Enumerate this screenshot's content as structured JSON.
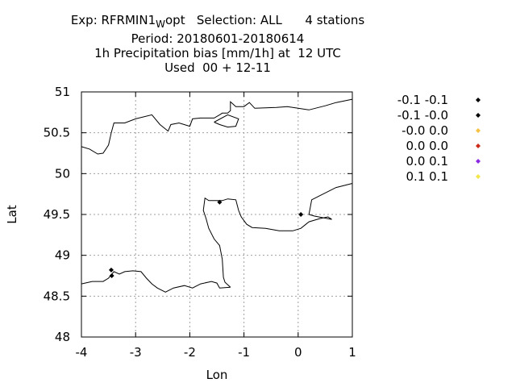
{
  "title": {
    "line1_prefix": "Exp: RFRMIN1",
    "line1_subscript": "W",
    "line1_suffix": "opt   Selection: ALL      4 stations",
    "line2": "Period: 20180601-20180614",
    "line3": "1h Precipitation bias [mm/1h] at  12 UTC",
    "line4": "Used  00 + 12-11"
  },
  "chart_data": {
    "type": "scatter",
    "xlabel": "Lon",
    "ylabel": "Lat",
    "xlim": [
      -4,
      1
    ],
    "ylim": [
      48,
      51
    ],
    "xticks": [
      -4,
      -3,
      -2,
      -1,
      0,
      1
    ],
    "yticks": [
      48,
      48.5,
      49,
      49.5,
      50,
      50.5,
      51
    ],
    "xtick_labels": [
      "-4",
      "-3",
      "-2",
      "-1",
      "0",
      "1"
    ],
    "ytick_labels": [
      "48",
      "48.5",
      "49",
      "49.5",
      "50",
      "50.5",
      "51"
    ],
    "grid": true,
    "legend_position": "right",
    "legend": [
      {
        "label": "-0.1 -0.1",
        "color": "#000000"
      },
      {
        "label": "-0.1 -0.0",
        "color": "#000000"
      },
      {
        "label": "-0.0 0.0",
        "color": "#f5c242"
      },
      {
        "label": "0.0 0.0",
        "color": "#cc2a1a"
      },
      {
        "label": "0.0 0.1",
        "color": "#8a2be2"
      },
      {
        "label": "0.1 0.1",
        "color": "#f2e64a"
      }
    ],
    "points": [
      {
        "lon": -3.45,
        "lat": 48.82,
        "color": "#000000"
      },
      {
        "lon": -3.44,
        "lat": 48.75,
        "color": "#000000"
      },
      {
        "lon": -1.45,
        "lat": 49.65,
        "color": "#000000"
      },
      {
        "lon": 0.05,
        "lat": 49.5,
        "color": "#000000"
      }
    ],
    "coastlines": [
      [
        [
          -4,
          50.33
        ],
        [
          -3.85,
          50.3
        ],
        [
          -3.7,
          50.24
        ],
        [
          -3.6,
          50.25
        ],
        [
          -3.5,
          50.35
        ],
        [
          -3.45,
          50.5
        ],
        [
          -3.4,
          50.62
        ],
        [
          -3.3,
          50.62
        ],
        [
          -3.2,
          50.62
        ],
        [
          -3.0,
          50.67
        ],
        [
          -2.7,
          50.72
        ],
        [
          -2.55,
          50.6
        ],
        [
          -2.4,
          50.52
        ],
        [
          -2.35,
          50.6
        ],
        [
          -2.2,
          50.62
        ],
        [
          -2.0,
          50.58
        ],
        [
          -1.95,
          50.67
        ],
        [
          -1.8,
          50.68
        ],
        [
          -1.55,
          50.68
        ],
        [
          -1.45,
          50.72
        ],
        [
          -1.4,
          50.74
        ],
        [
          -1.3,
          50.74
        ],
        [
          -1.25,
          50.77
        ],
        [
          -1.25,
          50.88
        ],
        [
          -1.15,
          50.82
        ],
        [
          -1.0,
          50.82
        ],
        [
          -0.9,
          50.87
        ],
        [
          -0.8,
          50.8
        ],
        [
          -0.4,
          50.81
        ],
        [
          -0.2,
          50.82
        ],
        [
          0.0,
          50.8
        ],
        [
          0.2,
          50.78
        ],
        [
          0.5,
          50.83
        ],
        [
          0.7,
          50.87
        ],
        [
          1.0,
          50.91
        ]
      ],
      [
        [
          -1.55,
          50.63
        ],
        [
          -1.3,
          50.72
        ],
        [
          -1.1,
          50.67
        ],
        [
          -1.15,
          50.58
        ],
        [
          -1.3,
          50.57
        ],
        [
          -1.45,
          50.6
        ],
        [
          -1.55,
          50.63
        ]
      ],
      [
        [
          -4,
          48.65
        ],
        [
          -3.8,
          48.68
        ],
        [
          -3.6,
          48.68
        ],
        [
          -3.5,
          48.72
        ],
        [
          -3.4,
          48.8
        ],
        [
          -3.3,
          48.77
        ],
        [
          -3.2,
          48.8
        ],
        [
          -3.05,
          48.81
        ],
        [
          -2.9,
          48.8
        ],
        [
          -2.8,
          48.72
        ],
        [
          -2.7,
          48.65
        ],
        [
          -2.6,
          48.6
        ],
        [
          -2.45,
          48.55
        ],
        [
          -2.3,
          48.6
        ],
        [
          -2.1,
          48.63
        ],
        [
          -1.95,
          48.6
        ],
        [
          -1.8,
          48.65
        ],
        [
          -1.6,
          48.68
        ],
        [
          -1.5,
          48.66
        ],
        [
          -1.45,
          48.6
        ],
        [
          -1.25,
          48.61
        ]
      ],
      [
        [
          -1.25,
          48.61
        ],
        [
          -1.35,
          48.67
        ],
        [
          -1.38,
          48.73
        ],
        [
          -1.4,
          48.95
        ],
        [
          -1.45,
          49.12
        ],
        [
          -1.55,
          49.2
        ],
        [
          -1.65,
          49.33
        ],
        [
          -1.7,
          49.45
        ],
        [
          -1.75,
          49.55
        ],
        [
          -1.72,
          49.7
        ],
        [
          -1.65,
          49.67
        ],
        [
          -1.4,
          49.67
        ],
        [
          -1.3,
          49.69
        ],
        [
          -1.15,
          49.68
        ],
        [
          -1.1,
          49.55
        ],
        [
          -1.05,
          49.47
        ],
        [
          -0.95,
          49.38
        ],
        [
          -0.85,
          49.34
        ],
        [
          -0.6,
          49.33
        ],
        [
          -0.35,
          49.3
        ],
        [
          -0.1,
          49.3
        ],
        [
          0.05,
          49.33
        ],
        [
          0.2,
          49.41
        ],
        [
          0.4,
          49.45
        ],
        [
          0.55,
          49.47
        ],
        [
          0.62,
          49.44
        ],
        [
          0.3,
          49.48
        ],
        [
          0.2,
          49.5
        ],
        [
          0.25,
          49.68
        ],
        [
          0.4,
          49.73
        ],
        [
          0.7,
          49.83
        ],
        [
          1.0,
          49.88
        ]
      ]
    ]
  }
}
